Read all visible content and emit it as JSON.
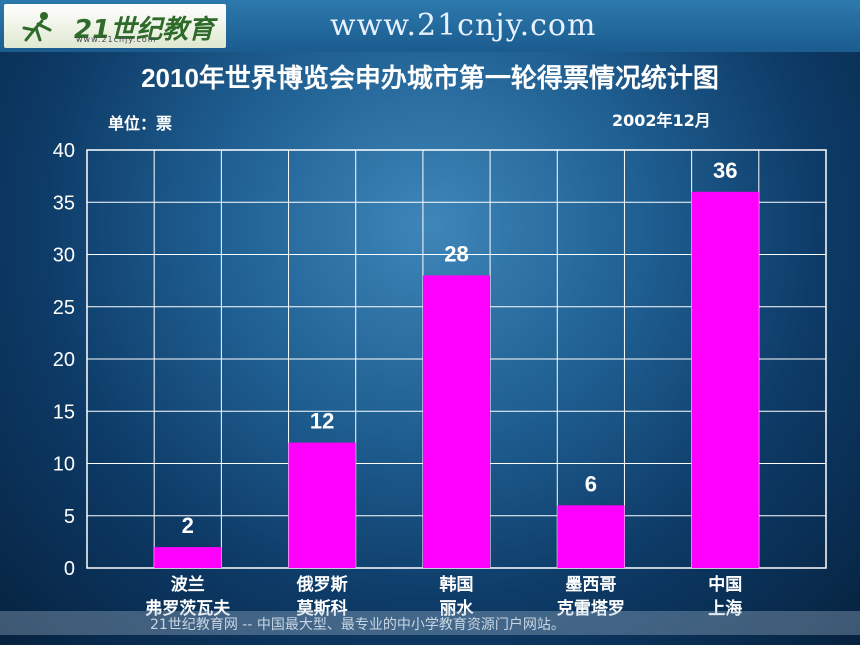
{
  "header": {
    "logo_text": "21世纪教育",
    "logo_sub": "www.21cnjy.com",
    "site_url": "www.21cnjy.com"
  },
  "unit_label": "单位：票",
  "date_label": "2002年12月",
  "footer_text": "21世纪教育网 -- 中国最大型、最专业的中小学教育资源门户网站。",
  "colors": {
    "bar": "#ff00ff",
    "grid": "#ffffff"
  },
  "chart_data": {
    "type": "bar",
    "title": "2010年世界博览会申办城市第一轮得票情况统计图",
    "categories": [
      [
        "波兰",
        "弗罗茨瓦夫"
      ],
      [
        "俄罗斯",
        "莫斯科"
      ],
      [
        "韩国",
        "丽水"
      ],
      [
        "墨西哥",
        "克雷塔罗"
      ],
      [
        "中国",
        "上海"
      ]
    ],
    "values": [
      2,
      12,
      28,
      6,
      36
    ],
    "data_labels": [
      "2",
      "12",
      "28",
      "6",
      "36"
    ],
    "yticks": [
      "0",
      "5",
      "10",
      "15",
      "20",
      "25",
      "30",
      "35",
      "40"
    ],
    "ylim": [
      0,
      40
    ],
    "grid": true
  }
}
